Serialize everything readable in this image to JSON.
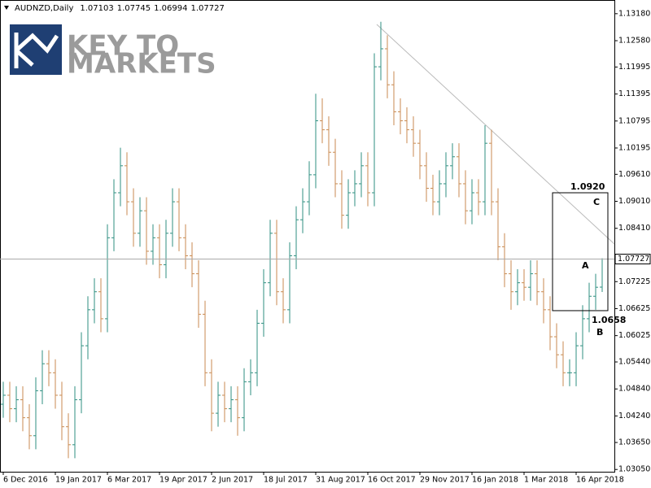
{
  "logo": {
    "line1": "KEY TO",
    "line2": "MARKETS"
  },
  "chart_data": {
    "type": "ohlc",
    "symbol": "AUDNZD,Daily",
    "up_color": "#2f8f80",
    "down_color": "#c88a50",
    "categories": [
      "6 Dec 2016",
      null,
      null,
      null,
      null,
      null,
      null,
      null,
      "19 Jan 2017",
      null,
      null,
      null,
      null,
      null,
      null,
      null,
      "6 Mar 2017",
      null,
      null,
      null,
      null,
      null,
      null,
      null,
      "19 Apr 2017",
      null,
      null,
      null,
      null,
      null,
      null,
      null,
      "2 Jun 2017",
      null,
      null,
      null,
      null,
      null,
      null,
      null,
      "18 Jul 2017",
      null,
      null,
      null,
      null,
      null,
      null,
      null,
      "31 Aug 2017",
      null,
      null,
      null,
      null,
      null,
      null,
      null,
      "16 Oct 2017",
      null,
      null,
      null,
      null,
      null,
      null,
      null,
      "29 Nov 2017",
      null,
      null,
      null,
      null,
      null,
      null,
      null,
      "16 Jan 2018",
      null,
      null,
      null,
      null,
      null,
      null,
      null,
      "1 Mar 2018",
      null,
      null,
      null,
      null,
      null,
      null,
      null,
      "16 Apr 2018",
      null,
      null,
      null,
      null
    ],
    "open": [
      1.045,
      1.047,
      1.044,
      1.046,
      1.042,
      1.038,
      1.048,
      1.054,
      1.052,
      1.047,
      1.04,
      1.036,
      1.046,
      1.058,
      1.066,
      1.07,
      1.064,
      1.082,
      1.092,
      1.098,
      1.09,
      1.083,
      1.088,
      1.079,
      1.082,
      1.076,
      1.083,
      1.09,
      1.082,
      1.078,
      1.074,
      1.065,
      1.052,
      1.043,
      1.047,
      1.044,
      1.046,
      1.042,
      1.05,
      1.052,
      1.063,
      1.072,
      1.083,
      1.07,
      1.066,
      1.078,
      1.086,
      1.09,
      1.096,
      1.108,
      1.106,
      1.101,
      1.094,
      1.087,
      1.092,
      1.094,
      1.098,
      1.092,
      1.12,
      1.124,
      1.116,
      1.11,
      1.108,
      1.106,
      1.103,
      1.098,
      1.093,
      1.09,
      1.094,
      1.098,
      1.1,
      1.094,
      1.088,
      1.092,
      1.09,
      1.103,
      1.09,
      1.08,
      1.074,
      1.07,
      1.072,
      1.071,
      1.074,
      1.07,
      1.066,
      1.06,
      1.056,
      1.052,
      1.052,
      1.058,
      1.064,
      1.069,
      1.07103
    ],
    "high": [
      1.05,
      1.05,
      1.049,
      1.049,
      1.045,
      1.051,
      1.057,
      1.057,
      1.055,
      1.05,
      1.043,
      1.049,
      1.061,
      1.069,
      1.073,
      1.073,
      1.085,
      1.095,
      1.102,
      1.101,
      1.093,
      1.091,
      1.091,
      1.085,
      1.085,
      1.086,
      1.093,
      1.093,
      1.085,
      1.081,
      1.077,
      1.068,
      1.055,
      1.05,
      1.05,
      1.049,
      1.049,
      1.053,
      1.055,
      1.066,
      1.075,
      1.086,
      1.086,
      1.073,
      1.081,
      1.089,
      1.093,
      1.099,
      1.114,
      1.113,
      1.109,
      1.104,
      1.097,
      1.095,
      1.097,
      1.101,
      1.101,
      1.123,
      1.13,
      1.127,
      1.119,
      1.113,
      1.111,
      1.109,
      1.106,
      1.101,
      1.096,
      1.097,
      1.101,
      1.103,
      1.103,
      1.097,
      1.095,
      1.095,
      1.107,
      1.106,
      1.093,
      1.083,
      1.077,
      1.075,
      1.075,
      1.077,
      1.077,
      1.073,
      1.069,
      1.063,
      1.059,
      1.055,
      1.061,
      1.067,
      1.072,
      1.074,
      1.07745
    ],
    "low": [
      1.042,
      1.041,
      1.041,
      1.039,
      1.035,
      1.035,
      1.045,
      1.049,
      1.044,
      1.037,
      1.033,
      1.033,
      1.043,
      1.055,
      1.063,
      1.061,
      1.061,
      1.079,
      1.089,
      1.087,
      1.08,
      1.08,
      1.076,
      1.076,
      1.073,
      1.073,
      1.08,
      1.079,
      1.075,
      1.071,
      1.062,
      1.049,
      1.039,
      1.04,
      1.041,
      1.041,
      1.038,
      1.039,
      1.047,
      1.049,
      1.06,
      1.069,
      1.067,
      1.063,
      1.063,
      1.075,
      1.083,
      1.087,
      1.093,
      1.103,
      1.098,
      1.091,
      1.084,
      1.084,
      1.089,
      1.091,
      1.089,
      1.089,
      1.117,
      1.113,
      1.107,
      1.105,
      1.103,
      1.1,
      1.095,
      1.09,
      1.087,
      1.087,
      1.091,
      1.095,
      1.091,
      1.085,
      1.085,
      1.087,
      1.087,
      1.087,
      1.077,
      1.071,
      1.066,
      1.067,
      1.068,
      1.068,
      1.067,
      1.063,
      1.057,
      1.053,
      1.049,
      1.049,
      1.049,
      1.055,
      1.061,
      1.066,
      1.06994
    ],
    "close": [
      1.047,
      1.044,
      1.046,
      1.042,
      1.038,
      1.048,
      1.054,
      1.052,
      1.047,
      1.04,
      1.036,
      1.046,
      1.058,
      1.066,
      1.07,
      1.064,
      1.082,
      1.092,
      1.098,
      1.09,
      1.083,
      1.088,
      1.079,
      1.082,
      1.076,
      1.083,
      1.09,
      1.082,
      1.078,
      1.074,
      1.065,
      1.052,
      1.043,
      1.047,
      1.044,
      1.046,
      1.042,
      1.05,
      1.052,
      1.063,
      1.072,
      1.083,
      1.07,
      1.066,
      1.078,
      1.086,
      1.09,
      1.096,
      1.108,
      1.106,
      1.101,
      1.094,
      1.087,
      1.092,
      1.094,
      1.098,
      1.092,
      1.12,
      1.124,
      1.116,
      1.11,
      1.108,
      1.106,
      1.103,
      1.098,
      1.093,
      1.09,
      1.094,
      1.098,
      1.1,
      1.094,
      1.088,
      1.092,
      1.09,
      1.103,
      1.09,
      1.08,
      1.074,
      1.07,
      1.072,
      1.071,
      1.074,
      1.07,
      1.066,
      1.06,
      1.056,
      1.052,
      1.052,
      1.058,
      1.064,
      1.069,
      1.071,
      1.07727
    ],
    "ylim": [
      1.03,
      1.1343
    ],
    "yticks": [
      {
        "value": 1.1318,
        "label": "1.13180"
      },
      {
        "value": 1.1258,
        "label": "1.12580"
      },
      {
        "value": 1.11995,
        "label": "1.11995"
      },
      {
        "value": 1.11395,
        "label": "1.11395"
      },
      {
        "value": 1.10795,
        "label": "1.10795"
      },
      {
        "value": 1.10195,
        "label": "1.10195"
      },
      {
        "value": 1.0961,
        "label": "1.09610"
      },
      {
        "value": 1.0901,
        "label": "1.09010"
      },
      {
        "value": 1.0841,
        "label": "1.08410"
      },
      {
        "value": 1.07225,
        "label": "1.07225"
      },
      {
        "value": 1.06625,
        "label": "1.06625"
      },
      {
        "value": 1.06025,
        "label": "1.06025"
      },
      {
        "value": 1.0544,
        "label": "1.05440"
      },
      {
        "value": 1.0484,
        "label": "1.04840"
      },
      {
        "value": 1.0424,
        "label": "1.04240"
      },
      {
        "value": 1.0365,
        "label": "1.03650"
      },
      {
        "value": 1.0305,
        "label": "1.03050"
      }
    ],
    "box": {
      "high": {
        "value": 1.092,
        "label": "1.0920"
      },
      "low": {
        "value": 1.0658,
        "label": "1.0658"
      }
    },
    "box_letters": {
      "top": "C",
      "middle": "A",
      "bottom": "B"
    }
  }
}
